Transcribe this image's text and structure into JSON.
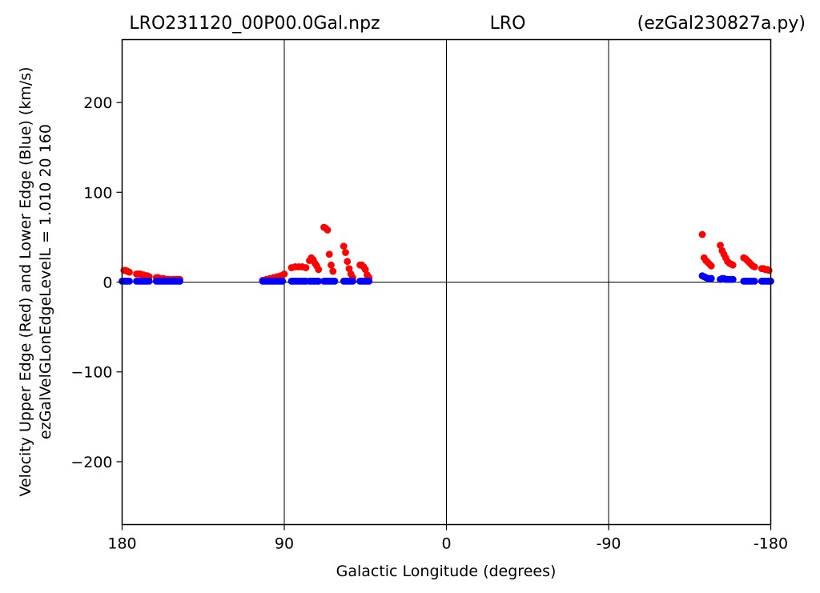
{
  "chart_data": {
    "type": "scatter",
    "title_parts": [
      "LRO231120_00P00.0Gal.npz",
      "LRO",
      "(ezGal230827a.py)"
    ],
    "xlabel": "Galactic Longitude (degrees)",
    "ylabel_lines": [
      "Velocity Upper Edge (Red) and Lower Edge (Blue)  (km/s)",
      "ezGalVelGLonEdgeLevelL = 1.010  20  160"
    ],
    "xlim": [
      180,
      -180
    ],
    "ylim": [
      -270,
      270
    ],
    "xticks": [
      180,
      90,
      0,
      -90,
      -180
    ],
    "xtick_labels": [
      "180",
      "90",
      "0",
      "-90",
      "-180"
    ],
    "yticks": [
      200,
      100,
      0,
      -100,
      -200
    ],
    "ytick_labels": [
      "200",
      "100",
      "0",
      "−100",
      "−200"
    ],
    "vlines": [
      90,
      0,
      -90
    ],
    "hlines": [
      0
    ],
    "series": [
      {
        "color": "#ff0000",
        "points": [
          [
            179,
            13
          ],
          [
            178,
            13
          ],
          [
            177,
            12
          ],
          [
            176,
            11
          ],
          [
            172,
            9
          ],
          [
            171,
            9
          ],
          [
            170,
            9
          ],
          [
            169,
            8
          ],
          [
            168,
            8
          ],
          [
            167,
            7
          ],
          [
            166,
            7
          ],
          [
            165,
            6
          ],
          [
            161,
            5
          ],
          [
            160,
            5
          ],
          [
            158,
            4
          ],
          [
            157,
            4
          ],
          [
            155,
            3
          ],
          [
            154,
            3
          ],
          [
            152,
            3
          ],
          [
            151,
            3
          ],
          [
            150,
            3
          ],
          [
            149,
            3
          ],
          [
            148,
            3
          ],
          [
            102,
            2
          ],
          [
            100,
            3
          ],
          [
            98,
            4
          ],
          [
            96,
            5
          ],
          [
            94,
            6
          ],
          [
            92,
            7
          ],
          [
            90,
            9
          ],
          [
            86,
            16
          ],
          [
            84,
            17
          ],
          [
            82,
            17
          ],
          [
            80,
            17
          ],
          [
            78,
            16
          ],
          [
            76,
            24
          ],
          [
            75,
            27
          ],
          [
            74,
            25
          ],
          [
            73,
            21
          ],
          [
            72,
            18
          ],
          [
            71,
            14
          ],
          [
            68,
            61
          ],
          [
            67,
            60
          ],
          [
            66,
            58
          ],
          [
            65,
            31
          ],
          [
            64,
            19
          ],
          [
            63,
            12
          ],
          [
            57,
            40
          ],
          [
            56,
            33
          ],
          [
            55,
            23
          ],
          [
            54,
            15
          ],
          [
            53,
            9
          ],
          [
            52,
            5
          ],
          [
            48,
            19
          ],
          [
            47,
            19
          ],
          [
            46,
            17
          ],
          [
            45,
            14
          ],
          [
            44,
            8
          ],
          [
            43,
            5
          ],
          [
            -142,
            53
          ],
          [
            -143,
            27
          ],
          [
            -144,
            24
          ],
          [
            -145,
            22
          ],
          [
            -146,
            20
          ],
          [
            -147,
            18
          ],
          [
            -152,
            41
          ],
          [
            -153,
            35
          ],
          [
            -154,
            31
          ],
          [
            -155,
            27
          ],
          [
            -156,
            23
          ],
          [
            -157,
            21
          ],
          [
            -158,
            20
          ],
          [
            -159,
            19
          ],
          [
            -165,
            27
          ],
          [
            -166,
            26
          ],
          [
            -167,
            24
          ],
          [
            -168,
            22
          ],
          [
            -169,
            20
          ],
          [
            -170,
            18
          ],
          [
            -171,
            17
          ],
          [
            -175,
            15
          ],
          [
            -176,
            15
          ],
          [
            -177,
            14
          ],
          [
            -178,
            14
          ],
          [
            -179,
            13
          ]
        ]
      },
      {
        "color": "#0000ff",
        "points": [
          [
            180,
            1
          ],
          [
            179,
            1
          ],
          [
            178,
            1
          ],
          [
            177,
            1
          ],
          [
            176,
            1
          ],
          [
            172,
            1
          ],
          [
            171,
            1
          ],
          [
            170,
            1
          ],
          [
            169,
            1
          ],
          [
            168,
            1
          ],
          [
            167,
            1
          ],
          [
            166,
            1
          ],
          [
            165,
            1
          ],
          [
            161,
            1
          ],
          [
            160,
            1
          ],
          [
            159,
            1
          ],
          [
            158,
            1
          ],
          [
            157,
            1
          ],
          [
            156,
            1
          ],
          [
            155,
            1
          ],
          [
            154,
            1
          ],
          [
            153,
            1
          ],
          [
            152,
            1
          ],
          [
            151,
            1
          ],
          [
            150,
            1
          ],
          [
            149,
            1
          ],
          [
            148,
            1
          ],
          [
            102,
            1
          ],
          [
            101,
            1
          ],
          [
            100,
            1
          ],
          [
            99,
            1
          ],
          [
            98,
            1
          ],
          [
            97,
            1
          ],
          [
            96,
            1
          ],
          [
            95,
            1
          ],
          [
            94,
            1
          ],
          [
            93,
            1
          ],
          [
            92,
            1
          ],
          [
            91,
            1
          ],
          [
            86,
            1
          ],
          [
            85,
            1
          ],
          [
            84,
            1
          ],
          [
            83,
            1
          ],
          [
            82,
            1
          ],
          [
            81,
            1
          ],
          [
            80,
            1
          ],
          [
            79,
            1
          ],
          [
            78,
            1
          ],
          [
            76,
            1
          ],
          [
            75,
            1
          ],
          [
            74,
            1
          ],
          [
            73,
            1
          ],
          [
            72,
            1
          ],
          [
            71,
            1
          ],
          [
            68,
            1
          ],
          [
            67,
            1
          ],
          [
            66,
            1
          ],
          [
            65,
            1
          ],
          [
            64,
            1
          ],
          [
            63,
            1
          ],
          [
            62,
            1
          ],
          [
            57,
            1
          ],
          [
            56,
            1
          ],
          [
            55,
            1
          ],
          [
            54,
            1
          ],
          [
            53,
            1
          ],
          [
            52,
            1
          ],
          [
            48,
            1
          ],
          [
            47,
            1
          ],
          [
            46,
            1
          ],
          [
            45,
            1
          ],
          [
            44,
            1
          ],
          [
            43,
            1
          ],
          [
            -142,
            7
          ],
          [
            -143,
            6
          ],
          [
            -144,
            5
          ],
          [
            -145,
            4
          ],
          [
            -146,
            4
          ],
          [
            -147,
            4
          ],
          [
            -152,
            3
          ],
          [
            -153,
            4
          ],
          [
            -154,
            4
          ],
          [
            -155,
            3
          ],
          [
            -156,
            3
          ],
          [
            -157,
            3
          ],
          [
            -158,
            3
          ],
          [
            -159,
            3
          ],
          [
            -165,
            1
          ],
          [
            -166,
            1
          ],
          [
            -167,
            1
          ],
          [
            -168,
            1
          ],
          [
            -169,
            1
          ],
          [
            -170,
            1
          ],
          [
            -171,
            1
          ],
          [
            -175,
            1
          ],
          [
            -176,
            1
          ],
          [
            -177,
            1
          ],
          [
            -178,
            1
          ],
          [
            -179,
            1
          ],
          [
            -180,
            1
          ]
        ]
      }
    ]
  }
}
